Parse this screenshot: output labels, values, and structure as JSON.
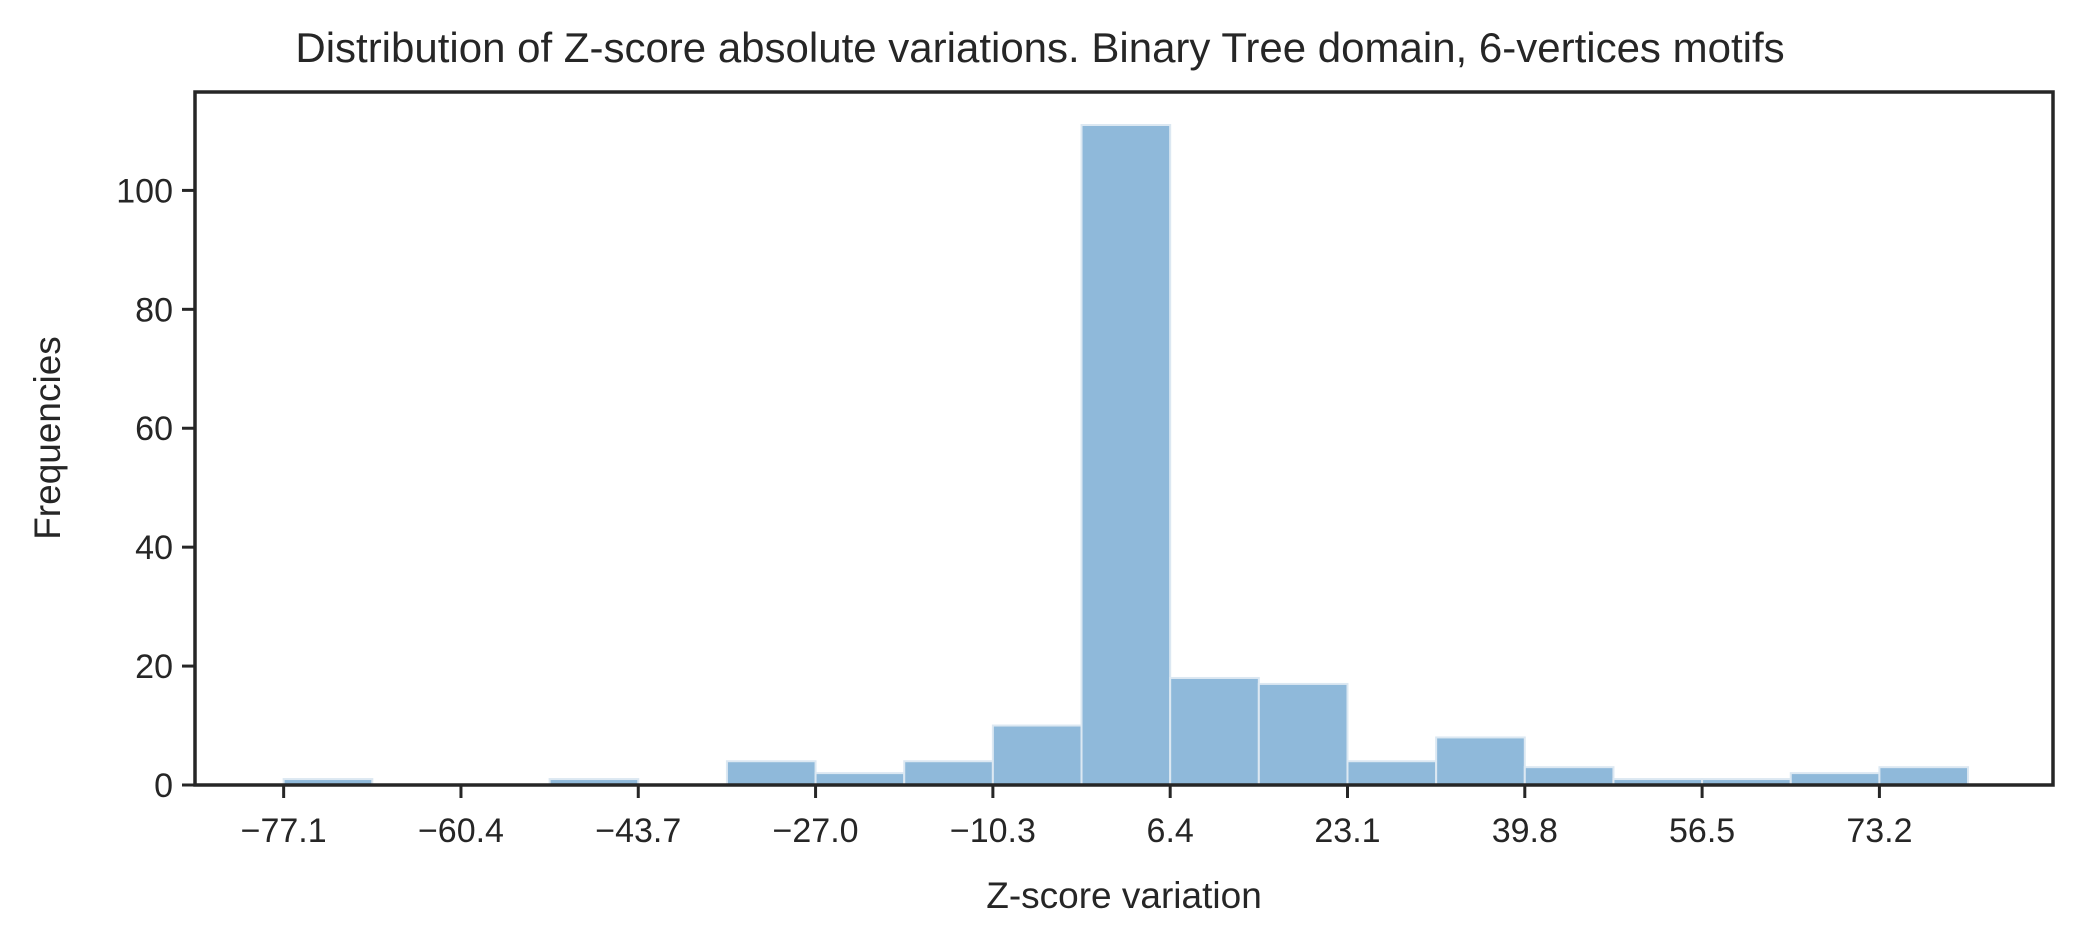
{
  "chart_data": {
    "type": "bar",
    "title": "Distribution of Z-score absolute variations. Binary Tree domain, 6-vertices motifs",
    "xlabel": "Z-score variation",
    "ylabel": "Frequencies",
    "x_ticks": [
      "−77.1",
      "−60.4",
      "−43.7",
      "−27.0",
      "−10.3",
      "6.4",
      "23.1",
      "39.8",
      "56.5",
      "73.2"
    ],
    "y_ticks": [
      "0",
      "20",
      "40",
      "60",
      "80",
      "100"
    ],
    "xlim": [
      -85.45,
      89.55
    ],
    "ylim": [
      0,
      116.55
    ],
    "bin_edges": [
      -77.1,
      -68.75,
      -60.4,
      -52.05,
      -43.7,
      -35.35,
      -27.0,
      -18.65,
      -10.3,
      -1.95,
      6.4,
      14.75,
      23.1,
      31.45,
      39.8,
      48.15,
      56.5,
      64.85,
      73.2,
      81.55
    ],
    "values": [
      1,
      0,
      0,
      1,
      0,
      4,
      2,
      4,
      10,
      111,
      18,
      17,
      4,
      8,
      3,
      1,
      1,
      2,
      3
    ],
    "bar_color": "#8fb9da",
    "bar_edge_color": "#dce8f2",
    "grid": false,
    "legend": "none"
  }
}
